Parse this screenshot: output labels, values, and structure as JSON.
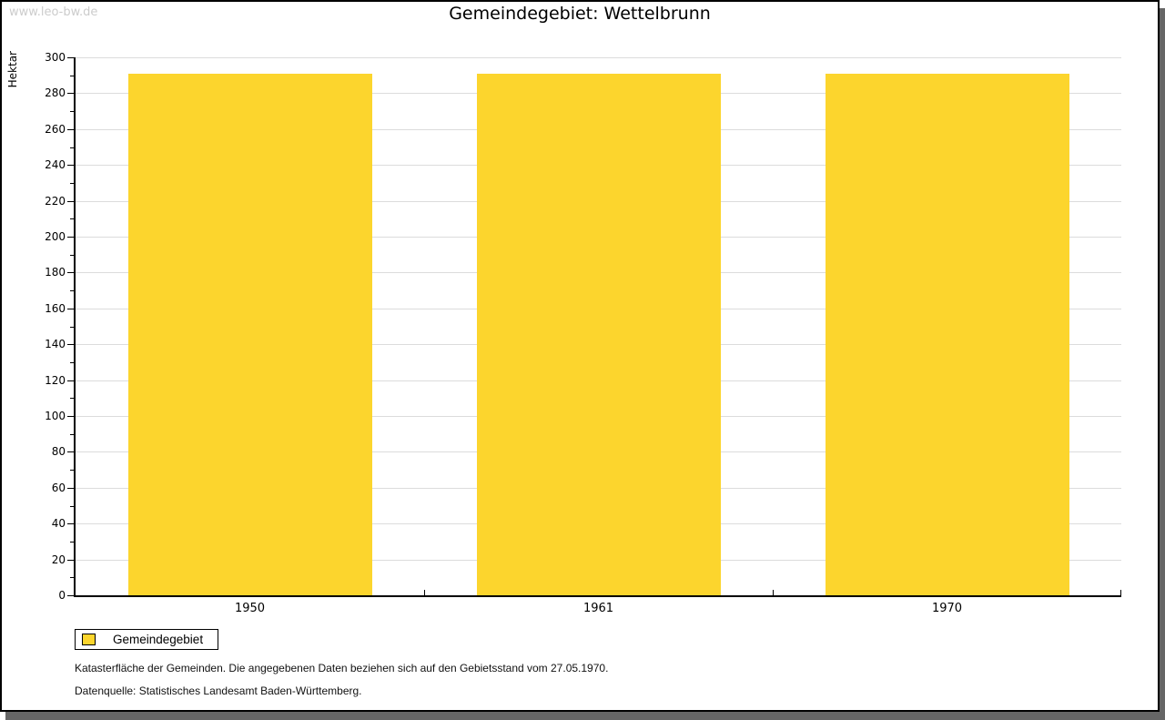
{
  "watermark": "www.leo-bw.de",
  "title": "Gemeindegebiet: Wettelbrunn",
  "legend": {
    "label": "Gemeindegebiet",
    "swatch_color": "#FCD52D"
  },
  "footer": {
    "line1": "Katasterfläche der Gemeinden. Die angegebenen Daten beziehen sich auf den Gebietsstand vom 27.05.1970.",
    "line2": "Datenquelle: Statistisches Landesamt Baden-Württemberg."
  },
  "chart_data": {
    "type": "bar",
    "title": "Gemeindegebiet: Wettelbrunn",
    "categories": [
      "1950",
      "1961",
      "1970"
    ],
    "series": [
      {
        "name": "Gemeindegebiet",
        "values": [
          291,
          291,
          291
        ],
        "color": "#FCD52D"
      }
    ],
    "xlabel": "",
    "ylabel": "Hektar",
    "ylim": [
      0,
      300
    ],
    "y_major_step": 20,
    "y_minor_step": 10,
    "grid": "horizontal-major-only",
    "legend_position": "bottom-left",
    "colors": {
      "bar": "#FCD52D",
      "gridline": "#DCDCDC",
      "axis": "#000000",
      "watermark": "#CCCCCC",
      "frame_border": "#000000",
      "frame_shadow": "#666666",
      "background": "#FFFFFF"
    }
  }
}
